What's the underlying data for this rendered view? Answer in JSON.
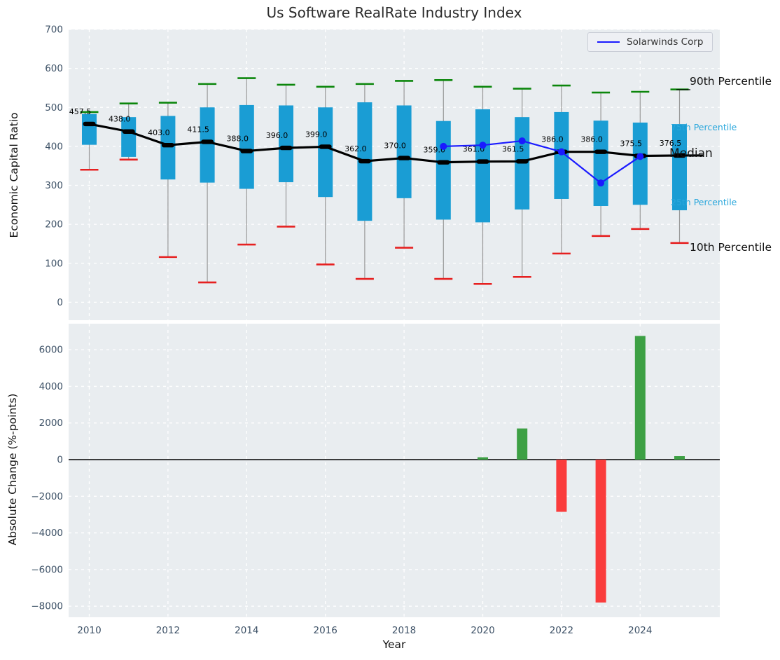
{
  "title": "Us Software RealRate Industry Index",
  "xlabel": "Year",
  "x_tick_labels": [
    "2010",
    "2012",
    "2014",
    "2016",
    "2018",
    "2020",
    "2022",
    "2024"
  ],
  "top_chart": {
    "ylabel": "Economic Capital Ratio",
    "y_tick_labels": [
      "700",
      "600",
      "500",
      "400",
      "300",
      "200",
      "100",
      "0"
    ],
    "legend": {
      "label": "Solarwinds Corp"
    },
    "annotations": {
      "p90": "90th Percentile",
      "p75": "75th Percentile",
      "median": "Median",
      "p25": "25th Percentile",
      "p10": "10th Percentile"
    }
  },
  "bottom_chart": {
    "ylabel": "Absolute Change (%-points)",
    "y_tick_labels": [
      "6000",
      "4000",
      "2000",
      "0",
      "−2000",
      "−4000",
      "−6000",
      "−8000"
    ]
  },
  "colors": {
    "box": "#1a9dd4",
    "p90_cap": "#0b860b",
    "p10_cap": "#e62020",
    "whisker": "#999999",
    "median_line": "#000000",
    "solarwinds_line": "#1a1aff",
    "bar_positive": "#3da044",
    "bar_negative": "#fa3c3c",
    "plot_bg": "#e9edf0",
    "grid": "#ffffff",
    "tick_label": "#3d5166",
    "percentile_cyan": "#2aa7dc"
  },
  "chart_data": [
    {
      "type": "boxplot",
      "title": "Us Software RealRate Industry Index",
      "ylabel": "Economic Capital Ratio",
      "xlabel": "Year",
      "x": [
        2010,
        2011,
        2012,
        2013,
        2014,
        2015,
        2016,
        2017,
        2018,
        2019,
        2020,
        2021,
        2022,
        2023,
        2024,
        2025
      ],
      "ylim": [
        -46,
        700
      ],
      "yticks": [
        700,
        600,
        500,
        400,
        300,
        200,
        100,
        0
      ],
      "grid": true,
      "legend_position": "upper right",
      "median_labels": [
        "457.5",
        "438.0",
        "403.0",
        "411.5",
        "388.0",
        "396.0",
        "399.0",
        "362.0",
        "370.0",
        "359.0",
        "361.0",
        "361.5",
        "386.0",
        "386.0",
        "375.5",
        "376.5"
      ],
      "series": [
        {
          "name": "90th Percentile",
          "values": [
            488,
            510,
            512,
            560,
            575,
            558,
            553,
            560,
            568,
            570,
            553,
            548,
            556,
            538,
            540,
            546
          ]
        },
        {
          "name": "75th Percentile",
          "values": [
            483,
            475,
            478,
            500,
            506,
            505,
            500,
            513,
            505,
            465,
            495,
            475,
            488,
            466,
            461,
            457
          ]
        },
        {
          "name": "Median",
          "values": [
            457.5,
            438.0,
            403.0,
            411.5,
            388.0,
            396.0,
            399.0,
            362.0,
            370.0,
            359.0,
            361.0,
            361.5,
            386.0,
            386.0,
            375.5,
            376.5
          ]
        },
        {
          "name": "25th Percentile",
          "values": [
            404,
            373,
            315,
            307,
            291,
            308,
            270,
            209,
            267,
            212,
            205,
            238,
            265,
            247,
            250,
            236
          ]
        },
        {
          "name": "10th Percentile",
          "values": [
            340,
            366,
            116,
            51,
            148,
            194,
            97,
            60,
            140,
            60,
            47,
            65,
            125,
            170,
            188,
            152
          ]
        },
        {
          "name": "Solarwinds Corp",
          "x": [
            2019,
            2020,
            2021,
            2022,
            2023,
            2024
          ],
          "values": [
            400,
            403,
            414,
            386,
            306,
            374
          ]
        }
      ]
    },
    {
      "type": "bar",
      "ylabel": "Absolute Change (%-points)",
      "xlabel": "Year",
      "x": [
        2010,
        2011,
        2012,
        2013,
        2014,
        2015,
        2016,
        2017,
        2018,
        2019,
        2020,
        2021,
        2022,
        2023,
        2024,
        2025
      ],
      "values": [
        0,
        0,
        0,
        0,
        0,
        0,
        0,
        0,
        0,
        0,
        130,
        1700,
        -2850,
        -7800,
        6750,
        190
      ],
      "ylim": [
        -8600,
        7420
      ],
      "yticks": [
        6000,
        4000,
        2000,
        0,
        -2000,
        -4000,
        -6000,
        -8000
      ],
      "grid": true
    }
  ]
}
